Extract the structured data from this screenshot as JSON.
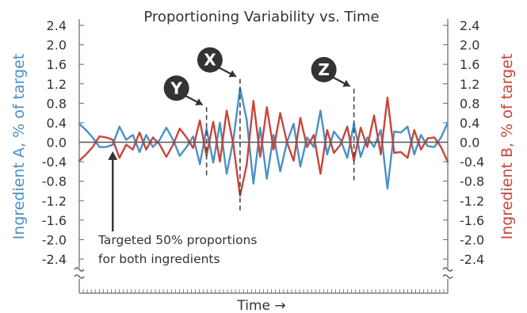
{
  "chart_data": {
    "type": "line",
    "title": "Proportioning Variability vs. Time",
    "xlabel": "Time →",
    "ylabel_left": "Ingredient A, % of target",
    "ylabel_right": "Ingredient B, % of target",
    "ylim": [
      -2.4,
      2.4
    ],
    "yticks": [
      "2.4",
      "2.0",
      "1.6",
      "1.2",
      "0.8",
      "0.4",
      "0.0",
      "-0.4",
      "-0.8",
      "-1.2",
      "-1.6",
      "-2.0",
      "-2.4"
    ],
    "grid": false,
    "colors": {
      "series_a": "#4a90c8",
      "series_b": "#c8463a",
      "axis": "#666666",
      "zero_line": "#555555",
      "marker_bg": "#333333"
    },
    "series": [
      {
        "key": "a",
        "color": "#4a90c8",
        "values": [
          0.38,
          0.25,
          0.1,
          -0.1,
          -0.1,
          -0.05,
          0.32,
          0.05,
          0.15,
          -0.2,
          0.15,
          -0.1,
          0.05,
          0.3,
          0.05,
          -0.28,
          -0.1,
          0.12,
          -0.45,
          0.28,
          -0.42,
          0.4,
          -0.65,
          0.05,
          1.12,
          0.45,
          -0.85,
          0.3,
          -0.75,
          0.15,
          -0.6,
          0.0,
          0.38,
          -0.5,
          0.1,
          -0.1,
          0.65,
          -0.25,
          0.22,
          0.05,
          -0.32,
          0.38,
          -0.3,
          0.1,
          -0.1,
          0.25,
          -0.95,
          0.22,
          0.2,
          0.32,
          -0.25,
          0.15,
          -0.08,
          -0.1,
          0.1,
          0.4
        ]
      },
      {
        "key": "b",
        "color": "#c8463a",
        "values": [
          -0.38,
          -0.25,
          -0.1,
          0.12,
          0.1,
          0.05,
          -0.32,
          -0.05,
          -0.15,
          0.2,
          -0.15,
          0.1,
          -0.05,
          -0.3,
          -0.05,
          0.28,
          0.1,
          -0.12,
          0.45,
          -0.28,
          0.42,
          -0.4,
          0.65,
          -0.05,
          -1.1,
          -0.45,
          0.85,
          -0.3,
          0.72,
          -0.15,
          0.6,
          0.0,
          -0.38,
          0.5,
          -0.1,
          0.15,
          -0.65,
          0.25,
          -0.22,
          -0.05,
          0.32,
          -0.38,
          0.3,
          -0.1,
          0.55,
          -0.25,
          0.92,
          -0.22,
          -0.2,
          -0.32,
          0.25,
          -0.15,
          0.08,
          0.1,
          -0.1,
          -0.4
        ]
      }
    ],
    "events": [
      {
        "label": "X",
        "index": 24,
        "range": [
          -1.4,
          1.3
        ]
      },
      {
        "label": "Y",
        "index": 19,
        "range": [
          -0.72,
          0.72
        ]
      },
      {
        "label": "Z",
        "index": 41,
        "range": [
          -0.78,
          1.1
        ]
      }
    ],
    "annotation": {
      "line1": "Targeted 50% proportions",
      "line2": "for both ingredients",
      "target_index": 5,
      "target_value": -0.12
    }
  }
}
